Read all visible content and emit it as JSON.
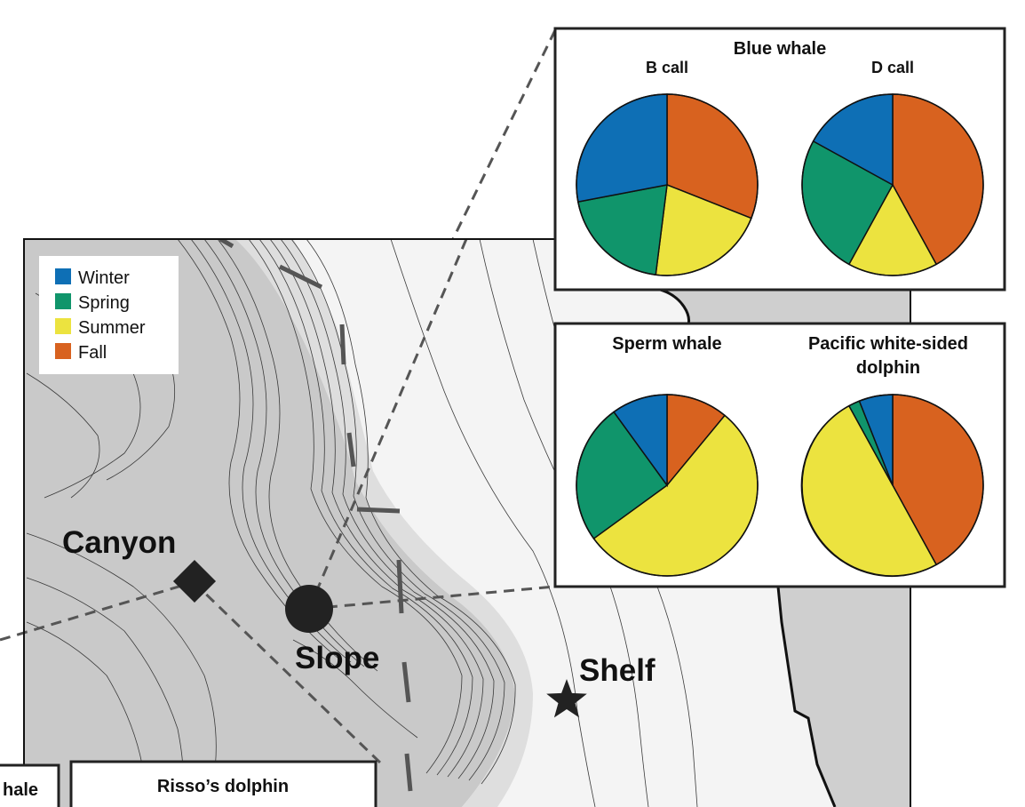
{
  "legend": {
    "items": [
      {
        "label": "Winter",
        "color": "#0e6fb5"
      },
      {
        "label": "Spring",
        "color": "#10956b"
      },
      {
        "label": "Summer",
        "color": "#ece33f"
      },
      {
        "label": "Fall",
        "color": "#d8621f"
      }
    ]
  },
  "sites": {
    "canyon": "Canyon",
    "slope": "Slope",
    "shelf": "Shelf"
  },
  "bottom_panels": {
    "left_partial": "hale",
    "risso": "Risso’s dolphin"
  },
  "chart_data": [
    {
      "type": "pie",
      "panel": "Blue whale",
      "title": "B call",
      "categories": [
        "Winter",
        "Spring",
        "Summer",
        "Fall"
      ],
      "values": [
        28,
        20,
        21,
        31
      ]
    },
    {
      "type": "pie",
      "panel": "Blue whale",
      "title": "D call",
      "categories": [
        "Winter",
        "Spring",
        "Summer",
        "Fall"
      ],
      "values": [
        17,
        25,
        16,
        42
      ]
    },
    {
      "type": "pie",
      "panel": "",
      "title": "Sperm whale",
      "categories": [
        "Winter",
        "Spring",
        "Summer",
        "Fall"
      ],
      "values": [
        10,
        25,
        54,
        11
      ]
    },
    {
      "type": "pie",
      "panel": "",
      "title": "Pacific white-sided dolphin",
      "title_lines": [
        "Pacific white-sided",
        "dolphin"
      ],
      "categories": [
        "Winter",
        "Spring",
        "Summer",
        "Fall"
      ],
      "values": [
        6,
        2,
        50,
        42
      ]
    }
  ]
}
